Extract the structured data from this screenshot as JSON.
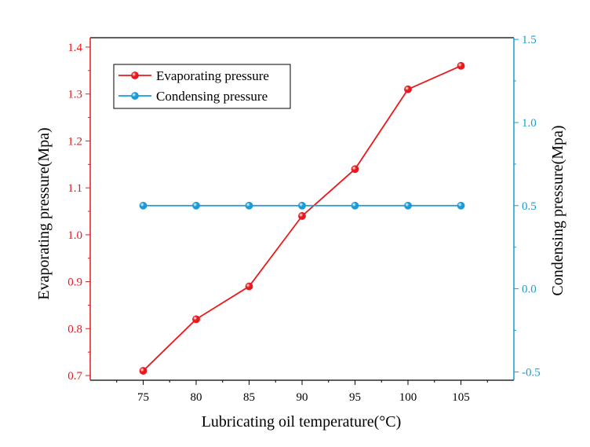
{
  "chart_data": {
    "type": "line",
    "xlabel": "Lubricating oil temperature(°C)",
    "x": [
      75,
      80,
      85,
      90,
      95,
      100,
      105
    ],
    "xlim": [
      70,
      110
    ],
    "xticks": [
      "75",
      "80",
      "85",
      "90",
      "95",
      "100",
      "105"
    ],
    "grid": false,
    "legend_position": "top-left",
    "axes": {
      "left": {
        "label": "Evaporating pressure(Mpa)",
        "ylim": [
          0.69,
          1.42
        ],
        "ticks": [
          "0.7",
          "0.8",
          "0.9",
          "1.0",
          "1.1",
          "1.2",
          "1.3",
          "1.4"
        ],
        "color": "#e8191c"
      },
      "right": {
        "label": "Condensing pressure(Mpa)",
        "ylim": [
          -0.55,
          1.51
        ],
        "ticks": [
          "-0.5",
          "0.0",
          "0.5",
          "1.0",
          "1.5"
        ],
        "color": "#1a9bd7"
      }
    },
    "series": [
      {
        "name": "Evaporating pressure",
        "axis": "left",
        "color": "#e8191c",
        "values": [
          0.71,
          0.82,
          0.89,
          1.04,
          1.14,
          1.31,
          1.36
        ]
      },
      {
        "name": "Condensing pressure",
        "axis": "right",
        "color": "#1a9bd7",
        "values": [
          0.5,
          0.5,
          0.5,
          0.5,
          0.5,
          0.5,
          0.5
        ]
      }
    ]
  }
}
